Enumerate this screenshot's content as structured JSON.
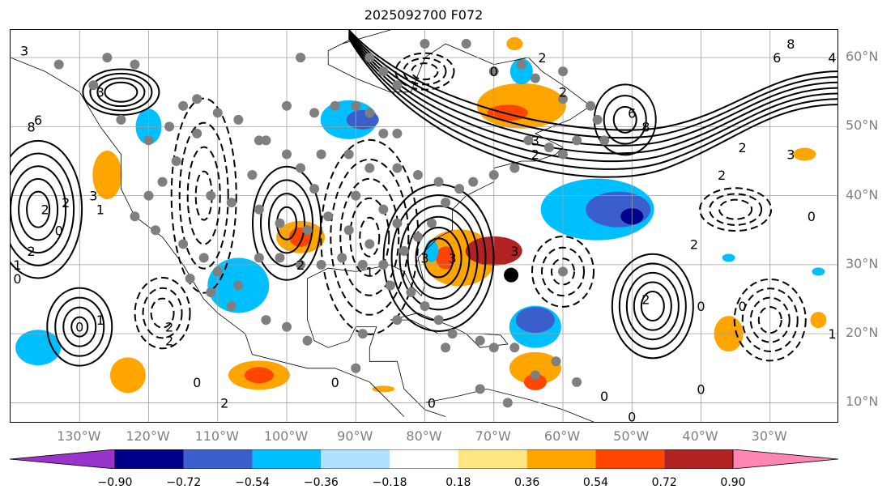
{
  "chart_data": {
    "type": "heatmap",
    "title": "2025092700 F072",
    "lon_ticks": [
      {
        "label": "130°W",
        "lon": -130
      },
      {
        "label": "120°W",
        "lon": -120
      },
      {
        "label": "110°W",
        "lon": -110
      },
      {
        "label": "100°W",
        "lon": -100
      },
      {
        "label": "90°W",
        "lon": -90
      },
      {
        "label": "80°W",
        "lon": -80
      },
      {
        "label": "70°W",
        "lon": -70
      },
      {
        "label": "60°W",
        "lon": -60
      },
      {
        "label": "50°W",
        "lon": -50
      },
      {
        "label": "40°W",
        "lon": -40
      },
      {
        "label": "30°W",
        "lon": -30
      }
    ],
    "lat_ticks": [
      {
        "label": "60°N",
        "lat": 60
      },
      {
        "label": "50°N",
        "lat": 50
      },
      {
        "label": "40°N",
        "lat": 40
      },
      {
        "label": "30°N",
        "lat": 30
      },
      {
        "label": "20°N",
        "lat": 20
      },
      {
        "label": "10°N",
        "lat": 10
      }
    ],
    "extent": {
      "lon": [
        -140,
        -20
      ],
      "lat": [
        7,
        64
      ]
    },
    "colorbar": {
      "levels": [
        "−0.90",
        "−0.72",
        "−0.54",
        "−0.36",
        "−0.18",
        "0.18",
        "0.36",
        "0.54",
        "0.72",
        "0.90"
      ],
      "colors": [
        "#9933cc",
        "#00008b",
        "#3a5fcd",
        "#00bfff",
        "#b0e2ff",
        "#ffffff",
        "#ffe680",
        "#ffa500",
        "#ff4500",
        "#b22222",
        "#ff85b3"
      ],
      "extend": "both"
    },
    "contour_labels": [
      {
        "text": "3",
        "lon": -138,
        "lat": 61
      },
      {
        "text": "3",
        "lon": -127,
        "lat": 55
      },
      {
        "text": "6",
        "lon": -136,
        "lat": 51
      },
      {
        "text": "8",
        "lon": -137,
        "lat": 50
      },
      {
        "text": "2",
        "lon": -132,
        "lat": 39
      },
      {
        "text": "3",
        "lon": -128,
        "lat": 40
      },
      {
        "text": "1",
        "lon": -127,
        "lat": 38
      },
      {
        "text": "2",
        "lon": -135,
        "lat": 38
      },
      {
        "text": "0",
        "lon": -133,
        "lat": 35
      },
      {
        "text": "2",
        "lon": -137,
        "lat": 32
      },
      {
        "text": "1",
        "lon": -139,
        "lat": 30
      },
      {
        "text": "0",
        "lon": -139,
        "lat": 28
      },
      {
        "text": "0",
        "lon": -130,
        "lat": 21
      },
      {
        "text": "1",
        "lon": -127,
        "lat": 22
      },
      {
        "text": "2",
        "lon": -117,
        "lat": 19
      },
      {
        "text": "2",
        "lon": -117,
        "lat": 21
      },
      {
        "text": "0",
        "lon": -113,
        "lat": 13
      },
      {
        "text": "2",
        "lon": -109,
        "lat": 10
      },
      {
        "text": "0",
        "lon": -93,
        "lat": 13
      },
      {
        "text": "0",
        "lon": -79,
        "lat": 10
      },
      {
        "text": "3",
        "lon": -80,
        "lat": 31
      },
      {
        "text": "3",
        "lon": -76,
        "lat": 31
      },
      {
        "text": "1",
        "lon": -88,
        "lat": 29
      },
      {
        "text": "3",
        "lon": -67,
        "lat": 32
      },
      {
        "text": "2",
        "lon": -98,
        "lat": 30
      },
      {
        "text": "3",
        "lon": -64,
        "lat": 48
      },
      {
        "text": "2",
        "lon": -64,
        "lat": 46
      },
      {
        "text": "6",
        "lon": -50,
        "lat": 52
      },
      {
        "text": "8",
        "lon": -48,
        "lat": 50
      },
      {
        "text": "8",
        "lon": -27,
        "lat": 62
      },
      {
        "text": "6",
        "lon": -29,
        "lat": 60
      },
      {
        "text": "4",
        "lon": -21,
        "lat": 60
      },
      {
        "text": "3",
        "lon": -27,
        "lat": 46
      },
      {
        "text": "2",
        "lon": -34,
        "lat": 47
      },
      {
        "text": "2",
        "lon": -37,
        "lat": 43
      },
      {
        "text": "0",
        "lon": -24,
        "lat": 37
      },
      {
        "text": "2",
        "lon": -41,
        "lat": 33
      },
      {
        "text": "0",
        "lon": -40,
        "lat": 24
      },
      {
        "text": "2",
        "lon": -48,
        "lat": 25
      },
      {
        "text": "0",
        "lon": -34,
        "lat": 24
      },
      {
        "text": "1",
        "lon": -21,
        "lat": 20
      },
      {
        "text": "0",
        "lon": -54,
        "lat": 11
      },
      {
        "text": "0",
        "lon": -40,
        "lat": 12
      },
      {
        "text": "0",
        "lon": -50,
        "lat": 8
      },
      {
        "text": "0",
        "lon": -70,
        "lat": 58
      },
      {
        "text": "2",
        "lon": -63,
        "lat": 60
      },
      {
        "text": "2",
        "lon": -60,
        "lat": 55
      }
    ]
  }
}
